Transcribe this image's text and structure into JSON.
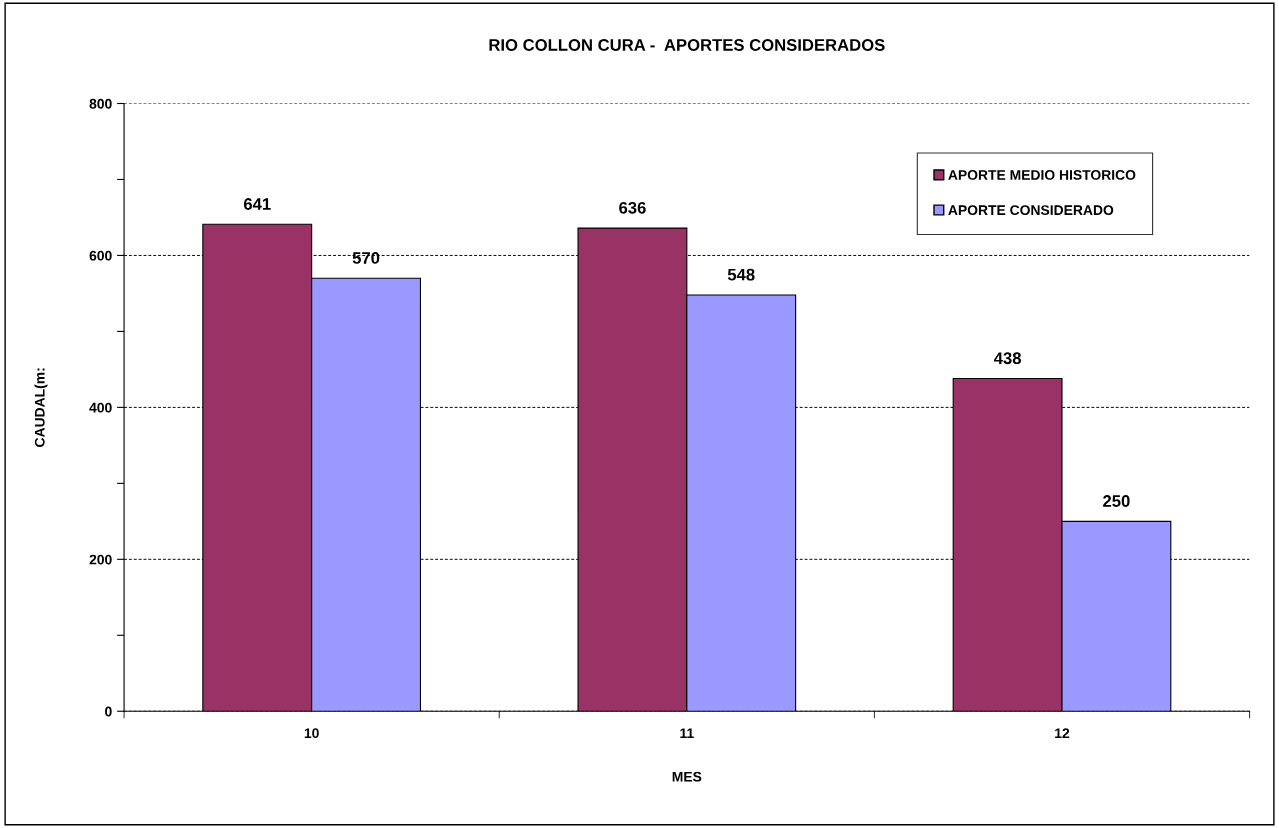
{
  "chart_data": {
    "type": "bar",
    "title": "RIO COLLON CURA -  APORTES CONSIDERADOS",
    "xlabel": "MES",
    "ylabel": "CAUDAL(m:",
    "categories": [
      "10",
      "11",
      "12"
    ],
    "series": [
      {
        "name": "APORTE MEDIO HISTORICO",
        "color": "#993366",
        "values": [
          641,
          636,
          438
        ]
      },
      {
        "name": "APORTE CONSIDERADO",
        "color": "#9999ff",
        "values": [
          570,
          548,
          250
        ]
      }
    ],
    "ylim": [
      0,
      800
    ],
    "yticks": [
      0,
      {
        "value": 100,
        "label": null
      },
      200,
      {
        "value": 300,
        "label": null
      },
      400,
      {
        "value": 500,
        "label": null
      },
      600,
      {
        "value": 700,
        "label": null
      },
      800
    ],
    "grid": "y",
    "legend": "top right",
    "data_labels": true
  }
}
